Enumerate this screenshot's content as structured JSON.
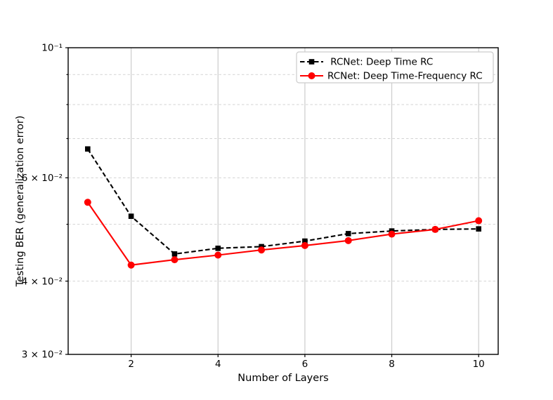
{
  "chart_data": {
    "type": "line",
    "title": "",
    "xlabel": "Number of Layers",
    "ylabel": "Testing BER (generalization error)",
    "x": [
      1,
      2,
      3,
      4,
      5,
      6,
      7,
      8,
      9,
      10
    ],
    "series": [
      {
        "name": "RCNet: Deep Time RC",
        "legend_label": " RCNet: Deep Time RC",
        "color": "#000000",
        "line_style": "dashed",
        "marker": "square",
        "values": [
          0.0672,
          0.0516,
          0.0445,
          0.0455,
          0.0458,
          0.0468,
          0.0482,
          0.0487,
          0.049,
          0.0491
        ]
      },
      {
        "name": "RCNet: Deep Time-Frequency RC",
        "legend_label": "RCNet: Deep Time-Frequency RC",
        "color": "#ff0000",
        "line_style": "solid",
        "marker": "circle",
        "values": [
          0.0545,
          0.0426,
          0.0435,
          0.0443,
          0.0452,
          0.046,
          0.0469,
          0.0481,
          0.049,
          0.0507
        ]
      }
    ],
    "xlim": [
      0.55,
      10.45
    ],
    "ylim": [
      0.03,
      0.1
    ],
    "yscale": "log",
    "grid": true,
    "legend_position": "upper right",
    "x_ticks": [
      {
        "value": 2,
        "label": "2"
      },
      {
        "value": 4,
        "label": "4"
      },
      {
        "value": 6,
        "label": "6"
      },
      {
        "value": 8,
        "label": "8"
      },
      {
        "value": 10,
        "label": "10"
      }
    ],
    "y_ticks": [
      {
        "value": 0.1,
        "label": "10⁻¹",
        "major": true
      },
      {
        "value": 0.09,
        "label": "",
        "major": false
      },
      {
        "value": 0.08,
        "label": "",
        "major": false
      },
      {
        "value": 0.07,
        "label": "",
        "major": false
      },
      {
        "value": 0.06,
        "label": "6 × 10⁻²",
        "major": true
      },
      {
        "value": 0.05,
        "label": "",
        "major": false
      },
      {
        "value": 0.04,
        "label": "4 × 10⁻²",
        "major": true
      },
      {
        "value": 0.03,
        "label": "3 × 10⁻²",
        "major": true
      }
    ],
    "colors": {
      "background": "#ffffff",
      "spine": "#000000",
      "x_grid": "#cccccc",
      "y_grid": "#d3d3d3",
      "legend_border": "#cccccc",
      "series_black": "#000000",
      "series_red": "#ff0000"
    }
  }
}
